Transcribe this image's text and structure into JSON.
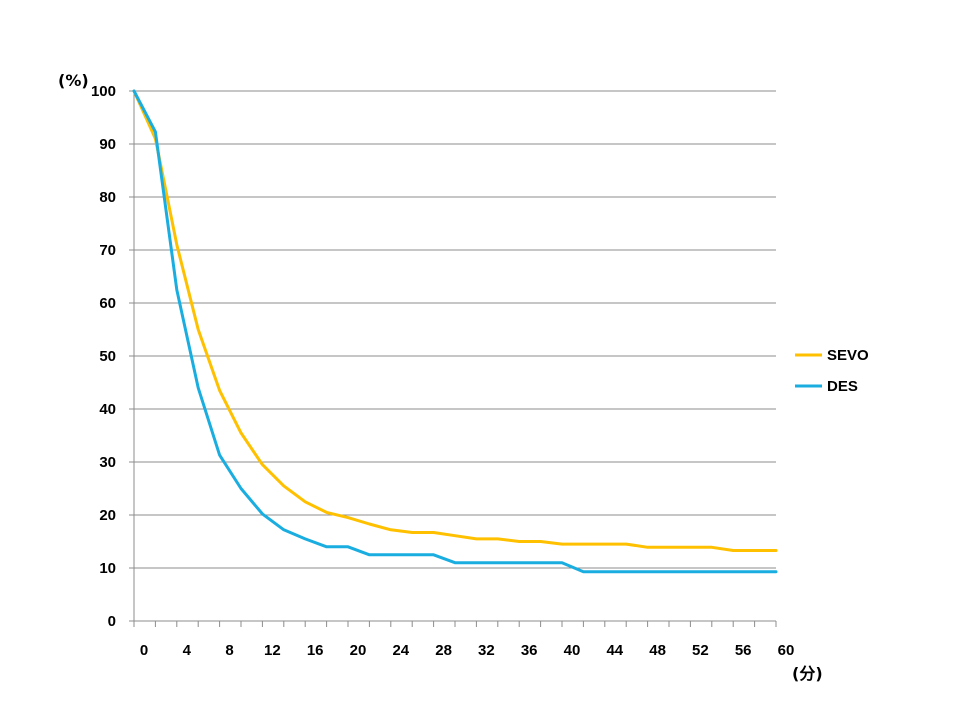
{
  "chart_data": {
    "type": "line",
    "title": "",
    "xlabel": "(分)",
    "ylabel": "(%)",
    "xlim": [
      0,
      60
    ],
    "ylim": [
      0,
      100
    ],
    "xticks": [
      0,
      4,
      8,
      12,
      16,
      20,
      24,
      28,
      32,
      36,
      40,
      44,
      48,
      52,
      56,
      60
    ],
    "yticks": [
      0,
      10,
      20,
      30,
      40,
      50,
      60,
      70,
      80,
      90,
      100
    ],
    "grid": "horizontal",
    "legend": "right",
    "series": [
      {
        "name": "SEVO",
        "color": "#FFC000",
        "x": [
          0,
          2,
          4,
          6,
          8,
          10,
          12,
          14,
          16,
          18,
          20,
          22,
          24,
          26,
          28,
          30,
          32,
          34,
          36,
          38,
          40,
          42,
          44,
          46,
          48,
          50,
          52,
          54,
          56,
          58,
          60
        ],
        "y": [
          100,
          91,
          71,
          55,
          43.5,
          35.5,
          29.5,
          25.5,
          22.5,
          20.5,
          19.5,
          18.3,
          17.2,
          16.7,
          16.7,
          16.1,
          15.5,
          15.5,
          15,
          15,
          14.5,
          14.5,
          14.5,
          14.5,
          13.9,
          13.9,
          13.9,
          13.9,
          13.3,
          13.3,
          13.3
        ]
      },
      {
        "name": "DES",
        "color": "#1AADE0",
        "x": [
          0,
          2,
          4,
          6,
          8,
          10,
          12,
          14,
          16,
          18,
          20,
          22,
          24,
          26,
          28,
          30,
          32,
          34,
          36,
          38,
          40,
          42,
          44,
          46,
          48,
          50,
          52,
          54,
          56,
          58,
          60
        ],
        "y": [
          100,
          92.3,
          62.5,
          44,
          31.3,
          25,
          20.2,
          17.2,
          15.5,
          14,
          14,
          12.5,
          12.5,
          12.5,
          12.5,
          11,
          11,
          11,
          11,
          11,
          11,
          9.3,
          9.3,
          9.3,
          9.3,
          9.3,
          9.3,
          9.3,
          9.3,
          9.3,
          9.3
        ]
      }
    ]
  }
}
